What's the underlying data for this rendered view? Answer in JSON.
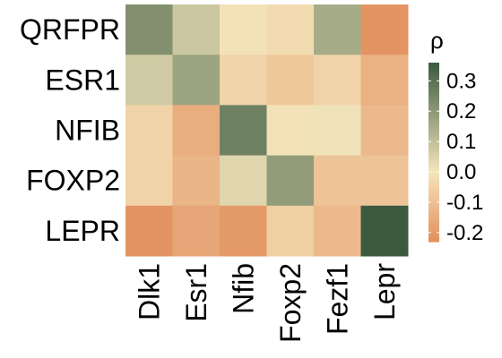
{
  "chart_data": {
    "type": "heatmap",
    "rows": [
      "QRFPR",
      "ESR1",
      "NFIB",
      "FOXP2",
      "LEPR"
    ],
    "columns": [
      "Dlk1",
      "Esr1",
      "Nfib",
      "Foxp2",
      "Fezf1",
      "Lepr"
    ],
    "values": [
      [
        0.22,
        0.08,
        -0.01,
        -0.03,
        0.15,
        -0.22
      ],
      [
        0.07,
        0.17,
        -0.05,
        -0.08,
        -0.05,
        -0.14
      ],
      [
        -0.05,
        -0.15,
        0.26,
        -0.01,
        0.01,
        -0.12
      ],
      [
        -0.05,
        -0.13,
        0.04,
        0.19,
        -0.09,
        -0.09
      ],
      [
        -0.22,
        -0.17,
        -0.2,
        -0.06,
        -0.12,
        0.37
      ]
    ],
    "colorbar": {
      "title": "ρ",
      "ticks": [
        "0.3",
        "0.2",
        "0.1",
        "0.0",
        "-0.1",
        "-0.2"
      ],
      "tick_values": [
        0.3,
        0.2,
        0.1,
        0.0,
        -0.1,
        -0.2
      ],
      "range": [
        -0.23,
        0.36
      ]
    },
    "colors": {
      "low": "#e38f5e",
      "mid": "#f4e6bc",
      "high": "#3b5a3f"
    }
  }
}
